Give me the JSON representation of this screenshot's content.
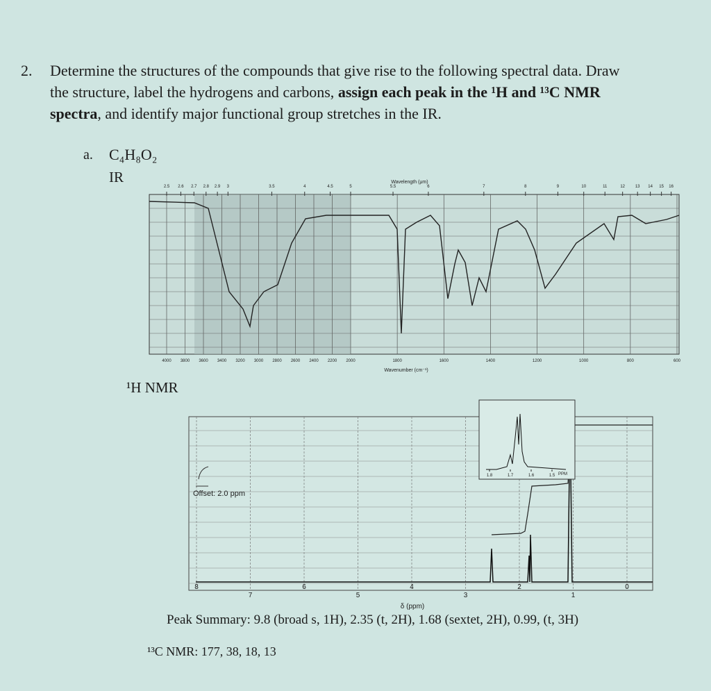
{
  "question": {
    "number": "2.",
    "lines": [
      [
        {
          "text": "Determine the structures of the compounds that give rise to the following spectral data. Draw",
          "bold": false
        }
      ],
      [
        {
          "text": "the structure, label the hydrogens and carbons, ",
          "bold": false
        },
        {
          "text": "assign each peak in the ¹H and ¹³C NMR",
          "bold": true
        }
      ],
      [
        {
          "text": "spectra",
          "bold": true
        },
        {
          "text": ", and identify major functional group stretches in the IR.",
          "bold": false
        }
      ]
    ]
  },
  "part": {
    "label": "a.",
    "formula": "C₄H₈O₂"
  },
  "ir": {
    "label": "IR",
    "wavelength_title": "Wavelength (μm)",
    "wavelength_ticks": [
      2.5,
      2.6,
      2.7,
      2.8,
      2.9,
      3,
      3.5,
      4,
      4.5,
      5,
      5.5,
      6,
      7,
      8,
      9,
      10,
      11,
      12,
      13,
      14,
      15,
      16
    ],
    "wavenumber_title": "Wavenumber (cm⁻¹)",
    "wavenumber_ticks": [
      4000,
      3800,
      3600,
      3400,
      3200,
      3000,
      2800,
      2600,
      2400,
      2200,
      2000,
      1800,
      1600,
      1400,
      1200,
      1000,
      800,
      600
    ]
  },
  "nmr": {
    "label": "¹H NMR",
    "offset_note": "Offset: 2.0 ppm",
    "inset_ticks": [
      1.8,
      1.7,
      1.6,
      1.5
    ],
    "inset_unit": "PPM",
    "ticks": [
      8,
      7,
      6,
      5,
      4,
      3,
      2,
      1,
      0
    ],
    "axis_title": "δ (ppm)"
  },
  "peak_summary": "Peak Summary: 9.8 (broad s, 1H), 2.35 (t, 2H), 1.68 (sextet, 2H), 0.99, (t, 3H)",
  "c13": "¹³C NMR: 177, 38, 18, 13"
}
